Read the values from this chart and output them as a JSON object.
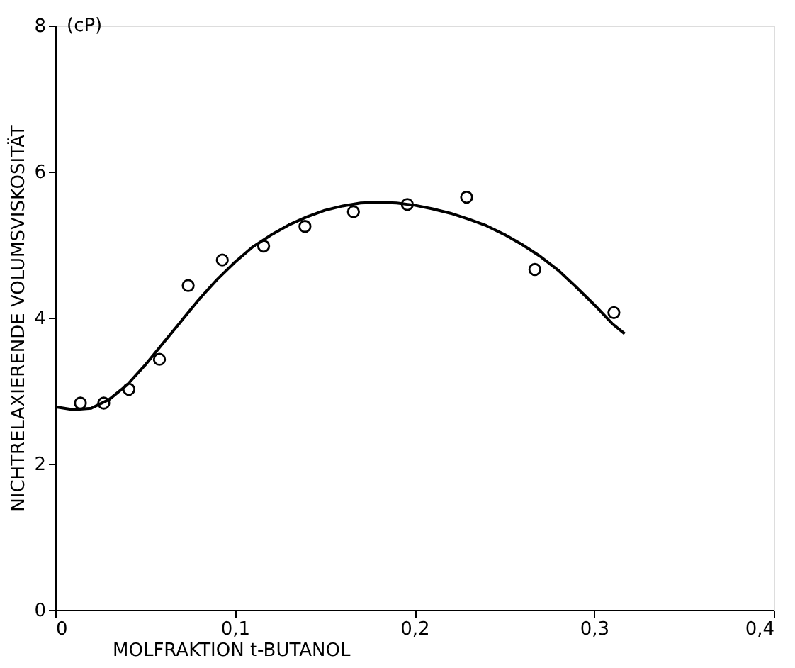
{
  "chart_data": {
    "type": "line",
    "xlabel": "MOLFRAKTION  t-BUTANOL",
    "ylabel": "NICHTRELAXIERENDE VOLUMSVISKOSITÄT",
    "annotations": [
      "(cP)"
    ],
    "series": [
      {
        "type": "scatter",
        "color": "#000000",
        "marker": "circle",
        "x": [
          0.014,
          0.027,
          0.041,
          0.058,
          0.074,
          0.093,
          0.116,
          0.139,
          0.166,
          0.196,
          0.229,
          0.267,
          0.311
        ],
        "values": [
          2.83,
          2.83,
          3.02,
          3.43,
          4.44,
          4.79,
          4.98,
          5.25,
          5.45,
          5.55,
          5.65,
          4.66,
          4.07
        ]
      },
      {
        "color": "#000000",
        "line_style": "solid",
        "x": [
          0,
          0.01,
          0.02,
          0.03,
          0.04,
          0.05,
          0.06,
          0.07,
          0.08,
          0.09,
          0.1,
          0.11,
          0.12,
          0.13,
          0.14,
          0.15,
          0.16,
          0.17,
          0.18,
          0.19,
          0.2,
          0.21,
          0.22,
          0.23,
          0.24,
          0.25,
          0.26,
          0.27,
          0.28,
          0.29,
          0.3,
          0.31,
          0.317
        ],
        "values": [
          2.78,
          2.74,
          2.76,
          2.88,
          3.08,
          3.35,
          3.65,
          3.95,
          4.25,
          4.52,
          4.76,
          4.97,
          5.13,
          5.27,
          5.38,
          5.47,
          5.53,
          5.57,
          5.58,
          5.57,
          5.54,
          5.49,
          5.43,
          5.35,
          5.26,
          5.14,
          5.0,
          4.84,
          4.65,
          4.42,
          4.18,
          3.92,
          3.78
        ]
      }
    ],
    "xlim": [
      0,
      0.4
    ],
    "ylim": [
      0,
      8
    ],
    "xticks": [
      0,
      {
        "value": 0.1,
        "label": "0,1"
      },
      {
        "value": 0.2,
        "label": "0,2"
      },
      {
        "value": 0.3,
        "label": "0,3"
      },
      {
        "value": 0.4,
        "label": "0,4"
      }
    ],
    "yticks": [
      0,
      2,
      4,
      6,
      8
    ],
    "grid": false
  }
}
